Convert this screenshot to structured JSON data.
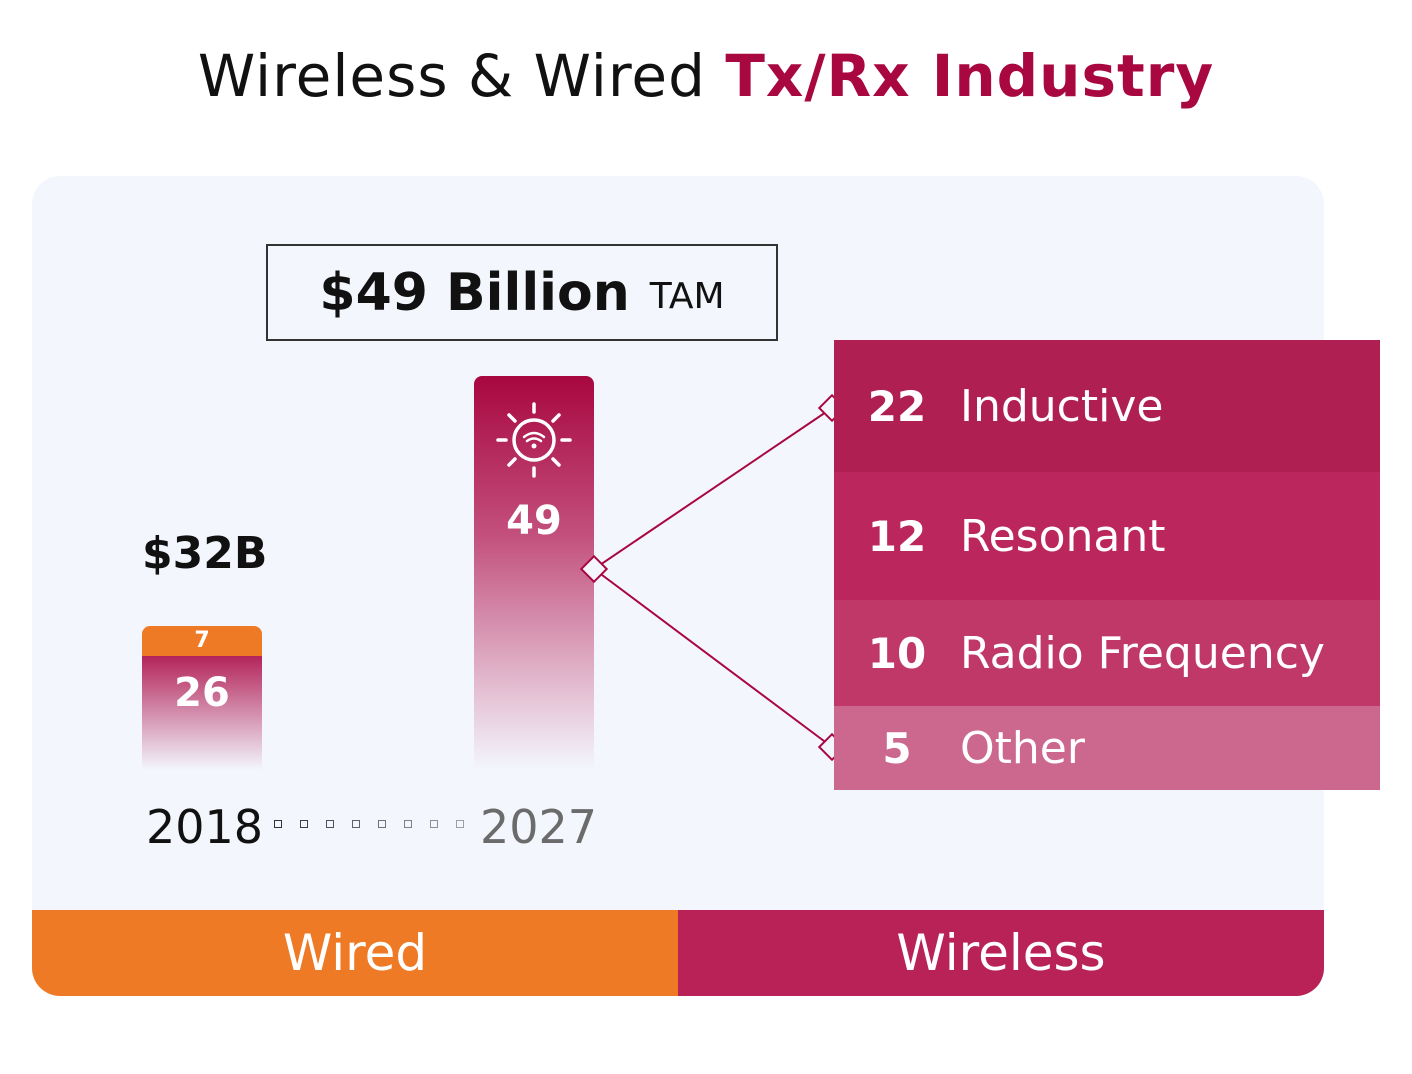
{
  "title": {
    "prefix": "Wireless & Wired ",
    "accent": "Tx/Rx Industry"
  },
  "tam": {
    "value": "$49 Billion",
    "suffix": "TAM"
  },
  "total_2018_label": "$32B",
  "bars": {
    "2018": {
      "wired_label": "7",
      "wireless_label": "26"
    },
    "2027": {
      "wireless_label": "49",
      "icon": "wireless-sun-icon"
    }
  },
  "years": {
    "start": "2018",
    "end": "2027"
  },
  "timeline_dot_count": 8,
  "segments": [
    {
      "value": "22",
      "label": "Inductive",
      "color": "#b01f52"
    },
    {
      "value": "12",
      "label": "Resonant",
      "color": "#bb275d"
    },
    {
      "value": "10",
      "label": "Radio Frequency",
      "color": "#bf3868"
    },
    {
      "value": "5",
      "label": "Other",
      "color": "#cc688d"
    }
  ],
  "footer": {
    "wired": "Wired",
    "wireless": "Wireless"
  },
  "colors": {
    "wired": "#ee7a25",
    "wireless": "#b82257",
    "accent": "#a8073f",
    "panel": "#f3f6fd"
  },
  "chart_data": {
    "type": "bar",
    "title": "Wireless & Wired Tx/Rx Industry",
    "categories": [
      "2018",
      "2027"
    ],
    "series": [
      {
        "name": "Wired",
        "values": [
          7,
          0
        ]
      },
      {
        "name": "Wireless",
        "values": [
          26,
          49
        ]
      }
    ],
    "totals": [
      32,
      49
    ],
    "unit": "$B",
    "annotation": "$49 Billion TAM",
    "breakdown_2027_wireless": {
      "categories": [
        "Inductive",
        "Resonant",
        "Radio Frequency",
        "Other"
      ],
      "values": [
        22,
        12,
        10,
        5
      ]
    },
    "legend": [
      "Wired",
      "Wireless"
    ],
    "legend_position": "bottom"
  }
}
